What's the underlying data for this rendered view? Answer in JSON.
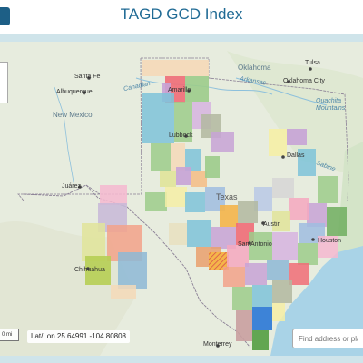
{
  "header": {
    "title": "TAGD GCD Index"
  },
  "map": {
    "labels": {
      "santa_fe": "Santa Fe",
      "albuquerque": "Albuquerque",
      "new_mexico": "New Mexico",
      "oklahoma": "Oklahoma",
      "tulsa": "Tulsa",
      "oklahoma_city": "Oklahoma City",
      "ouachita": "Ouachita\nMountains",
      "amarillo": "Amarillo",
      "lubbock": "Lubbock",
      "dallas": "Dallas",
      "texas": "Texas",
      "juarez": "Juárez",
      "chihuahua": "Chihuahua",
      "austin": "Austin",
      "san_antonio": "San Antonio",
      "houston": "Houston",
      "monterrey": "Monterrey",
      "canadian": "Canadian",
      "arkansas": "Arkansas",
      "sabine": "Sabine"
    },
    "scale_text": "0 mi",
    "coordinates_readout": "Lat/Lon 25.64991 -104.80808",
    "search": {
      "placeholder": "Find address or place"
    },
    "colors": {
      "water": "#a9d3e7",
      "land": "#e7ecde",
      "border": "#8a7f95"
    }
  }
}
